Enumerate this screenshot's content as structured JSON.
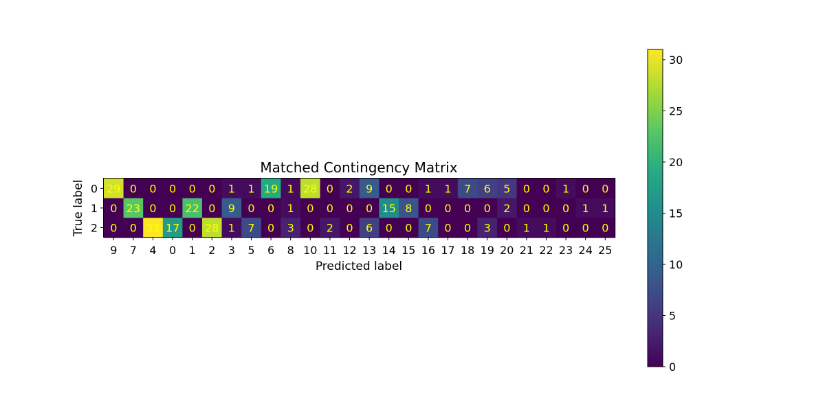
{
  "chart_data": {
    "type": "heatmap",
    "title": "Matched Contingency Matrix",
    "xlabel": "Predicted label",
    "ylabel": "True label",
    "x_categories": [
      "9",
      "7",
      "4",
      "0",
      "1",
      "2",
      "3",
      "5",
      "6",
      "8",
      "10",
      "11",
      "12",
      "13",
      "14",
      "15",
      "16",
      "17",
      "18",
      "19",
      "20",
      "21",
      "22",
      "23",
      "24",
      "25"
    ],
    "y_categories": [
      "0",
      "1",
      "2"
    ],
    "values": [
      [
        29,
        0,
        0,
        0,
        0,
        0,
        1,
        1,
        19,
        1,
        28,
        0,
        2,
        9,
        0,
        0,
        1,
        1,
        7,
        6,
        5,
        0,
        0,
        1,
        0,
        0
      ],
      [
        0,
        23,
        0,
        0,
        22,
        0,
        9,
        0,
        0,
        1,
        0,
        0,
        0,
        0,
        15,
        8,
        0,
        0,
        0,
        0,
        2,
        0,
        0,
        0,
        1,
        1
      ],
      [
        0,
        0,
        31,
        17,
        0,
        28,
        1,
        7,
        0,
        3,
        0,
        2,
        0,
        6,
        0,
        0,
        7,
        0,
        0,
        3,
        0,
        1,
        1,
        0,
        0,
        0
      ]
    ],
    "colormap": "viridis",
    "colorbar": {
      "range": [
        0,
        31
      ],
      "ticks": [
        "0",
        "5",
        "10",
        "15",
        "20",
        "25",
        "30"
      ]
    },
    "annotation_color": "#ffff00"
  }
}
